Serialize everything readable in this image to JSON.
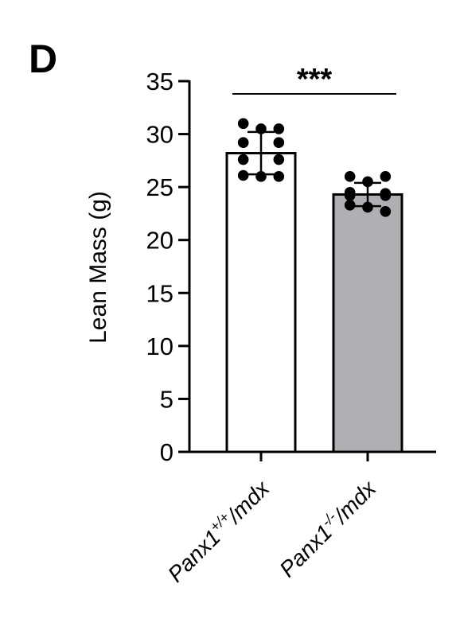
{
  "panel_label": "D",
  "chart_data": {
    "type": "bar",
    "ylabel": "Lean Mass (g)",
    "ylim": [
      0,
      35
    ],
    "yticks": [
      0,
      5,
      10,
      15,
      20,
      25,
      30,
      35
    ],
    "categories": [
      {
        "base": "Panx1",
        "sup": "+/+",
        "suffix": "/mdx"
      },
      {
        "base": "Panx1",
        "sup": "-/-",
        "suffix": "/mdx"
      }
    ],
    "values": [
      28.2,
      24.3
    ],
    "error": [
      2.0,
      1.1
    ],
    "bar_colors": [
      "#ffffff",
      "#b0b0b4"
    ],
    "points": [
      [
        31.0,
        30.5,
        30.5,
        29.2,
        29.2,
        27.6,
        27.6,
        26.1,
        26.0,
        26.0
      ],
      [
        26.0,
        26.0,
        25.5,
        24.5,
        24.4,
        24.2,
        24.2,
        23.3,
        23.1,
        22.7
      ]
    ],
    "significance": {
      "label": "***",
      "between": [
        0,
        1
      ]
    }
  }
}
